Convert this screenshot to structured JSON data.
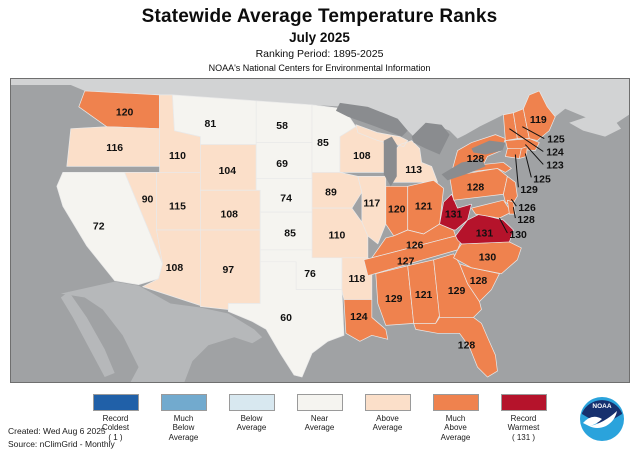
{
  "header": {
    "title": "Statewide Average Temperature Ranks",
    "subtitle": "July 2025",
    "period": "Ranking Period: 1895-2025",
    "org": "NOAA's National Centers for Environmental Information"
  },
  "footer": {
    "created": "Created: Wed Aug  6 2025",
    "source": "Source: nClimGrid - Monthly"
  },
  "logo": {
    "text": "NOAA"
  },
  "legend": {
    "items": [
      {
        "key": "record-coldest",
        "color": "#2060a8",
        "lines": [
          "Record",
          "Coldest",
          "( 1 )"
        ]
      },
      {
        "key": "much-below",
        "color": "#72aace",
        "lines": [
          "Much",
          "Below",
          "Average"
        ]
      },
      {
        "key": "below",
        "color": "#d8e8f0",
        "lines": [
          "Below",
          "Average"
        ]
      },
      {
        "key": "near",
        "color": "#f5f4f0",
        "lines": [
          "Near",
          "Average"
        ]
      },
      {
        "key": "above",
        "color": "#fbdfc9",
        "lines": [
          "Above",
          "Average"
        ]
      },
      {
        "key": "much-above",
        "color": "#ef824e",
        "lines": [
          "Much",
          "Above",
          "Average"
        ]
      },
      {
        "key": "record-warmest",
        "color": "#b5132b",
        "lines": [
          "Record",
          "Warmest",
          "( 131 )"
        ]
      }
    ]
  },
  "map": {
    "ocean": "#a0a2a4",
    "canada": "#d2d3d4",
    "mexico": "#b6b8ba",
    "lakes": "#8a8c8f",
    "colors": {
      "record-coldest": "#2060a8",
      "much-below": "#72aace",
      "below": "#d8e8f0",
      "near": "#f5f4f0",
      "above": "#fbdfc9",
      "much-above": "#ef824e",
      "record-warmest": "#b5132b"
    }
  },
  "chart_data": {
    "type": "choropleth",
    "title": "Statewide Average Temperature Ranks, July 2025",
    "ranking_period": "1895-2025",
    "scale_note": "Rank 1 = record coldest, rank 131 = record warmest",
    "states": [
      {
        "id": "CA",
        "value": 72,
        "category": "near"
      },
      {
        "id": "WA",
        "value": 120,
        "category": "much-above"
      },
      {
        "id": "OR",
        "value": 116,
        "category": "above"
      },
      {
        "id": "ID",
        "value": 110,
        "category": "above"
      },
      {
        "id": "MT",
        "value": 81,
        "category": "near"
      },
      {
        "id": "NV",
        "value": 90,
        "category": "above"
      },
      {
        "id": "UT",
        "value": 115,
        "category": "above"
      },
      {
        "id": "WY",
        "value": 104,
        "category": "above"
      },
      {
        "id": "CO",
        "value": 108,
        "category": "above"
      },
      {
        "id": "AZ",
        "value": 108,
        "category": "above"
      },
      {
        "id": "NM",
        "value": 97,
        "category": "above"
      },
      {
        "id": "ND",
        "value": 58,
        "category": "near"
      },
      {
        "id": "SD",
        "value": 69,
        "category": "near"
      },
      {
        "id": "NE",
        "value": 74,
        "category": "near"
      },
      {
        "id": "KS",
        "value": 85,
        "category": "near"
      },
      {
        "id": "OK",
        "value": 76,
        "category": "near"
      },
      {
        "id": "TX",
        "value": 60,
        "category": "near"
      },
      {
        "id": "MN",
        "value": 85,
        "category": "near"
      },
      {
        "id": "IA",
        "value": 89,
        "category": "above"
      },
      {
        "id": "MO",
        "value": 110,
        "category": "above"
      },
      {
        "id": "AR",
        "value": 118,
        "category": "above"
      },
      {
        "id": "LA",
        "value": 124,
        "category": "much-above"
      },
      {
        "id": "WI",
        "value": 108,
        "category": "above"
      },
      {
        "id": "IL",
        "value": 117,
        "category": "above"
      },
      {
        "id": "MI",
        "value": 113,
        "category": "above"
      },
      {
        "id": "IN",
        "value": 120,
        "category": "much-above"
      },
      {
        "id": "OH",
        "value": 121,
        "category": "much-above"
      },
      {
        "id": "KY",
        "value": 126,
        "category": "much-above"
      },
      {
        "id": "TN",
        "value": 127,
        "category": "much-above"
      },
      {
        "id": "MS",
        "value": 129,
        "category": "much-above"
      },
      {
        "id": "AL",
        "value": 121,
        "category": "much-above"
      },
      {
        "id": "GA",
        "value": 129,
        "category": "much-above"
      },
      {
        "id": "FL",
        "value": 128,
        "category": "much-above"
      },
      {
        "id": "SC",
        "value": 128,
        "category": "much-above"
      },
      {
        "id": "NC",
        "value": 130,
        "category": "much-above"
      },
      {
        "id": "WV",
        "value": 131,
        "category": "record-warmest"
      },
      {
        "id": "VA",
        "value": 131,
        "category": "record-warmest"
      },
      {
        "id": "PA",
        "value": 128,
        "category": "much-above"
      },
      {
        "id": "NY",
        "value": 128,
        "category": "much-above"
      },
      {
        "id": "NJ",
        "value": 126,
        "category": "much-above"
      },
      {
        "id": "MD",
        "value": 130,
        "category": "much-above"
      },
      {
        "id": "DE",
        "value": 128,
        "category": "much-above"
      },
      {
        "id": "VT",
        "value": 124,
        "category": "much-above"
      },
      {
        "id": "NH",
        "value": 125,
        "category": "much-above"
      },
      {
        "id": "ME",
        "value": 119,
        "category": "much-above"
      },
      {
        "id": "MA",
        "value": 123,
        "category": "much-above"
      },
      {
        "id": "CT",
        "value": 129,
        "category": "much-above"
      },
      {
        "id": "RI",
        "value": 125,
        "category": "much-above"
      }
    ]
  }
}
